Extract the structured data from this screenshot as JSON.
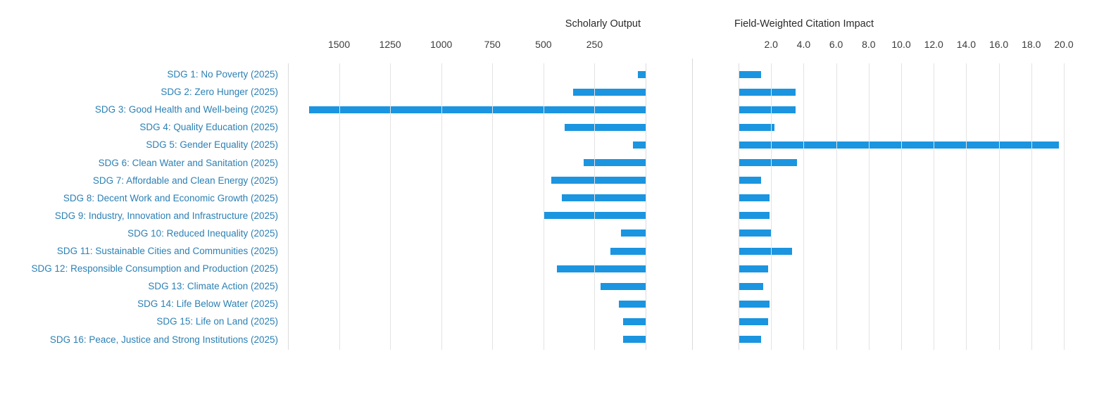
{
  "colors": {
    "bar": "#1b95e0",
    "category_link": "#2c80b4",
    "axis_title_text": "#2b2b2b",
    "tick_text": "#3c3c3c",
    "gridline": "#e3e3e3",
    "panel_separator": "#d9d9d9",
    "background": "#ffffff"
  },
  "chart_data": {
    "type": "bar",
    "layout": "two-panel horizontal bar chart with shared category axis; left panel bars grow right-to-left, right panel bars grow left-to-right",
    "grid": true,
    "legend": false,
    "categories": [
      "SDG 1: No Poverty (2025)",
      "SDG 2: Zero Hunger (2025)",
      "SDG 3: Good Health and Well-being (2025)",
      "SDG 4: Quality Education (2025)",
      "SDG 5: Gender Equality (2025)",
      "SDG 6: Clean Water and Sanitation (2025)",
      "SDG 7: Affordable and Clean Energy (2025)",
      "SDG 8: Decent Work and Economic Growth (2025)",
      "SDG 9: Industry, Innovation and Infrastructure (2025)",
      "SDG 10: Reduced Inequality (2025)",
      "SDG 11: Sustainable Cities and Communities (2025)",
      "SDG 12: Responsible Consumption and Production (2025)",
      "SDG 13: Climate Action (2025)",
      "SDG 14: Life Below Water (2025)",
      "SDG 15: Life on Land (2025)",
      "SDG 16: Peace, Justice and Strong Institutions (2025)"
    ],
    "series": [
      {
        "name": "Scholarly Output",
        "direction": "right-to-left",
        "xlim": [
          0,
          1750
        ],
        "axis_ticks": [
          "1500",
          "1250",
          "1000",
          "750",
          "500",
          "250"
        ],
        "axis_tick_values": [
          1500,
          1250,
          1000,
          750,
          500,
          250
        ],
        "values": [
          39,
          354,
          1645,
          396,
          62,
          302,
          460,
          411,
          497,
          119,
          172,
          434,
          220,
          131,
          110,
          110
        ]
      },
      {
        "name": "Field-Weighted Citation Impact",
        "direction": "left-to-right",
        "xlim": [
          0,
          20
        ],
        "axis_ticks": [
          "2.0",
          "4.0",
          "6.0",
          "8.0",
          "10.0",
          "12.0",
          "14.0",
          "16.0",
          "18.0",
          "20.0"
        ],
        "axis_tick_values": [
          2,
          4,
          6,
          8,
          10,
          12,
          14,
          16,
          18,
          20
        ],
        "values": [
          1.4,
          3.5,
          3.5,
          2.2,
          19.7,
          3.6,
          1.4,
          1.9,
          1.9,
          2.0,
          3.3,
          1.8,
          1.5,
          1.9,
          1.8,
          1.4
        ]
      }
    ]
  }
}
